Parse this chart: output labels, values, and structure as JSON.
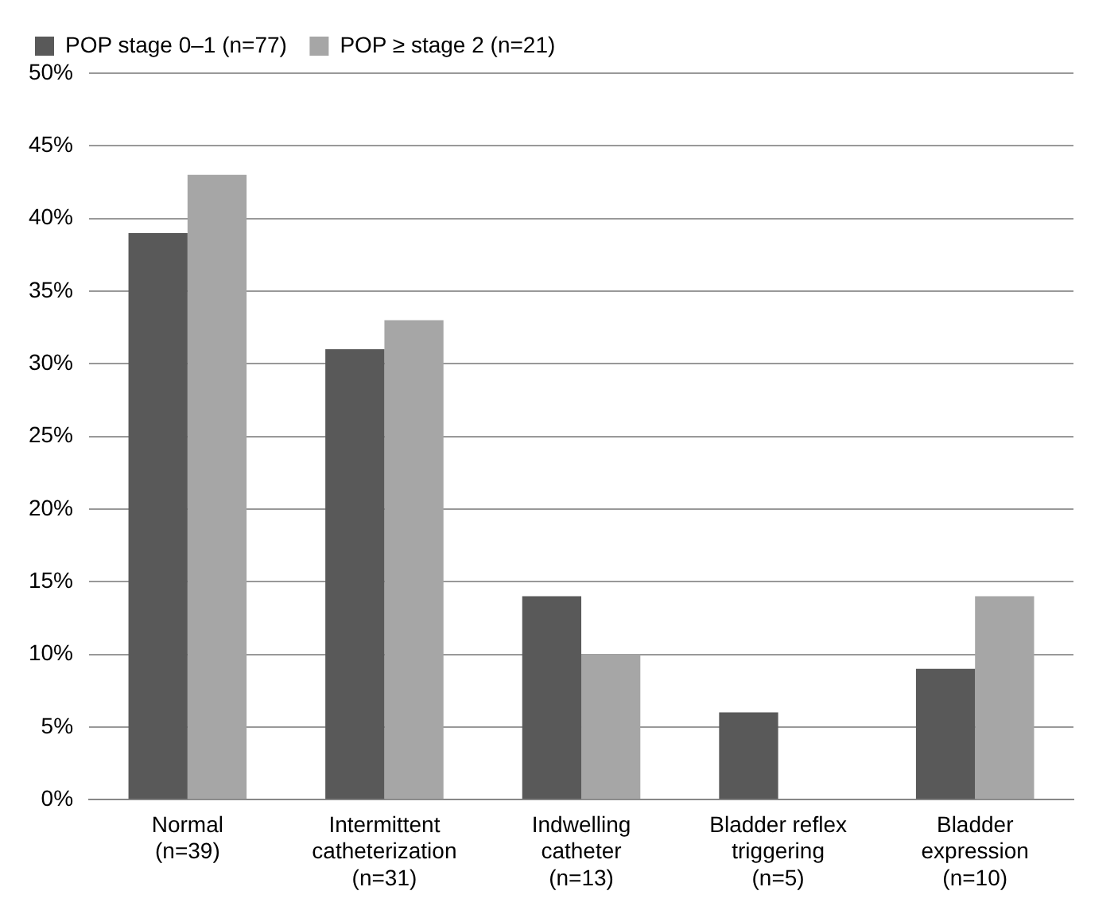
{
  "chart_data": {
    "type": "bar",
    "categories": [
      "Normal\n(n=39)",
      "Intermittent\ncatheterization\n(n=31)",
      "Indwelling\ncatheter\n(n=13)",
      "Bladder reflex\ntriggering\n(n=5)",
      "Bladder\nexpression\n(n=10)"
    ],
    "series": [
      {
        "name": "POP stage 0–1 (n=77)",
        "color": "#595959",
        "values": [
          39,
          31,
          14,
          6,
          9
        ]
      },
      {
        "name": "POP ≥ stage 2 (n=21)",
        "color": "#a6a6a6",
        "values": [
          43,
          33,
          10,
          0,
          14
        ]
      }
    ],
    "ylim": [
      0,
      50
    ],
    "yticks": [
      {
        "value": 0,
        "label": "0%"
      },
      {
        "value": 5,
        "label": "5%"
      },
      {
        "value": 10,
        "label": "10%"
      },
      {
        "value": 15,
        "label": "15%"
      },
      {
        "value": 20,
        "label": "20%"
      },
      {
        "value": 25,
        "label": "25%"
      },
      {
        "value": 30,
        "label": "30%"
      },
      {
        "value": 35,
        "label": "35%"
      },
      {
        "value": 40,
        "label": "40%"
      },
      {
        "value": 45,
        "label": "45%"
      },
      {
        "value": 50,
        "label": "50%"
      }
    ],
    "grid": "y",
    "legend": "top left"
  }
}
